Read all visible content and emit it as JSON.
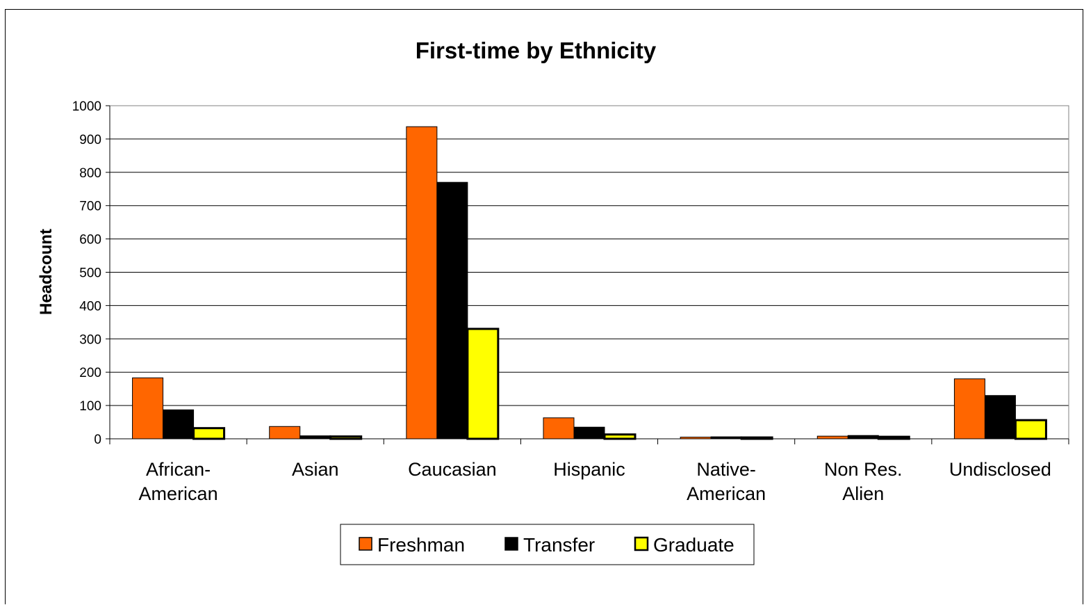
{
  "chart_data": {
    "type": "bar",
    "title": "First-time by Ethnicity",
    "xlabel": "",
    "ylabel": "Headcount",
    "ylim": [
      0,
      1000
    ],
    "yticks": [
      "0",
      "100",
      "200",
      "300",
      "400",
      "500",
      "600",
      "700",
      "800",
      "900",
      "1000"
    ],
    "grid": true,
    "legend_position": "bottom",
    "categories": [
      [
        "African-",
        "American"
      ],
      [
        "Asian"
      ],
      [
        "Caucasian"
      ],
      [
        "Hispanic"
      ],
      [
        "Native-",
        "American"
      ],
      [
        "Non Res.",
        "Alien"
      ],
      [
        "Undisclosed"
      ]
    ],
    "series": [
      {
        "name": "Freshman",
        "color": "#ff6600",
        "values": [
          183,
          37,
          937,
          63,
          5,
          8,
          180
        ]
      },
      {
        "name": "Transfer",
        "color": "#000000",
        "values": [
          87,
          9,
          770,
          35,
          6,
          10,
          130
        ]
      },
      {
        "name": "Graduate",
        "color": "#ffff00",
        "values": [
          32,
          7,
          330,
          13,
          4,
          6,
          56
        ]
      }
    ]
  }
}
